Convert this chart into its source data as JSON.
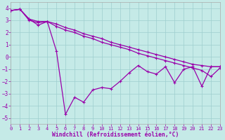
{
  "bg_color": "#c5eae7",
  "grid_color": "#9ecece",
  "line_color": "#9900aa",
  "xlabel": "Windchill (Refroidissement éolien,°C)",
  "xlim": [
    0,
    23
  ],
  "ylim": [
    -5.5,
    4.5
  ],
  "yticks": [
    -5,
    -4,
    -3,
    -2,
    -1,
    0,
    1,
    2,
    3,
    4
  ],
  "xticks": [
    0,
    1,
    2,
    3,
    4,
    5,
    6,
    7,
    8,
    9,
    10,
    11,
    12,
    13,
    14,
    15,
    16,
    17,
    18,
    19,
    20,
    21,
    22,
    23
  ],
  "series_jagged_x": [
    0,
    1,
    2,
    3,
    4,
    5,
    6,
    7,
    8,
    9,
    10,
    11,
    12,
    13,
    14,
    15,
    16,
    17,
    18,
    19,
    20,
    21,
    22,
    23
  ],
  "series_jagged_y": [
    3.8,
    3.9,
    3.1,
    2.6,
    2.9,
    0.5,
    -4.7,
    -3.3,
    -3.7,
    -2.7,
    -2.5,
    -2.6,
    -2.0,
    -1.3,
    -0.7,
    -1.2,
    -1.4,
    -0.8,
    -2.1,
    -1.0,
    -0.8,
    -2.4,
    -0.8,
    -0.8
  ],
  "series_upper_x": [
    0,
    1,
    2,
    3,
    4,
    5,
    6,
    7,
    8,
    9,
    10,
    11,
    12,
    13,
    14,
    15,
    16,
    17,
    18,
    19,
    20,
    21,
    22,
    23
  ],
  "series_upper_y": [
    3.8,
    3.9,
    3.1,
    2.9,
    2.9,
    2.7,
    2.4,
    2.2,
    1.9,
    1.7,
    1.5,
    1.2,
    1.0,
    0.8,
    0.6,
    0.4,
    0.2,
    0.0,
    -0.2,
    -0.4,
    -0.6,
    -0.7,
    -0.8,
    -0.8
  ],
  "series_lower_x": [
    0,
    1,
    2,
    3,
    4,
    5,
    6,
    7,
    8,
    9,
    10,
    11,
    12,
    13,
    14,
    15,
    16,
    17,
    18,
    19,
    20,
    21,
    22,
    23
  ],
  "series_lower_y": [
    3.8,
    3.9,
    3.0,
    2.8,
    2.9,
    2.5,
    2.2,
    2.0,
    1.7,
    1.5,
    1.2,
    1.0,
    0.8,
    0.6,
    0.3,
    0.1,
    -0.1,
    -0.3,
    -0.5,
    -0.7,
    -0.9,
    -1.1,
    -1.6,
    -0.9
  ]
}
